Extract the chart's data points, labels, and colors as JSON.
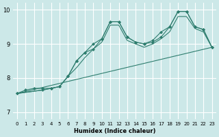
{
  "xlabel": "Humidex (Indice chaleur)",
  "bg_color": "#cce8e8",
  "grid_color": "#ffffff",
  "line_color": "#2e7d6e",
  "xlim": [
    -0.5,
    23.5
  ],
  "ylim": [
    6.8,
    10.2
  ],
  "xticks": [
    0,
    1,
    2,
    3,
    4,
    5,
    6,
    7,
    8,
    9,
    10,
    11,
    12,
    13,
    14,
    15,
    16,
    17,
    18,
    19,
    20,
    21,
    22,
    23
  ],
  "yticks": [
    7,
    8,
    9,
    10
  ],
  "series": [
    {
      "x": [
        0,
        1,
        2,
        3,
        4,
        5,
        6,
        7,
        8,
        9,
        10,
        11,
        12,
        13,
        14,
        15,
        16,
        17,
        18,
        19,
        20,
        21,
        22,
        23
      ],
      "y": [
        7.55,
        7.65,
        7.7,
        7.7,
        7.7,
        7.75,
        8.05,
        8.5,
        8.75,
        9.0,
        9.15,
        9.65,
        9.65,
        9.2,
        9.05,
        9.0,
        9.05,
        9.2,
        9.5,
        9.95,
        9.95,
        9.5,
        9.42,
        8.9
      ],
      "markers": true
    },
    {
      "x": [
        0,
        3,
        4,
        5,
        6,
        7,
        8,
        9,
        10,
        11,
        12,
        13,
        14,
        15,
        16,
        17,
        18,
        19,
        20,
        21,
        22,
        23
      ],
      "y": [
        7.55,
        7.65,
        7.7,
        7.75,
        8.05,
        8.5,
        8.75,
        8.85,
        9.15,
        9.65,
        9.65,
        9.2,
        9.05,
        9.0,
        9.1,
        9.35,
        9.5,
        9.95,
        9.95,
        9.5,
        9.42,
        8.9
      ],
      "markers": true
    },
    {
      "x": [
        0,
        3,
        4,
        5,
        6,
        7,
        8,
        9,
        10,
        11,
        12,
        13,
        14,
        15,
        16,
        17,
        18,
        19,
        20,
        21,
        22,
        23
      ],
      "y": [
        7.55,
        7.65,
        7.7,
        7.75,
        8.05,
        8.3,
        8.6,
        8.85,
        9.05,
        9.55,
        9.55,
        9.1,
        9.0,
        8.9,
        9.0,
        9.15,
        9.35,
        9.8,
        9.8,
        9.45,
        9.35,
        8.9
      ],
      "markers": false
    },
    {
      "x": [
        0,
        23
      ],
      "y": [
        7.55,
        8.9
      ],
      "markers": false
    }
  ]
}
